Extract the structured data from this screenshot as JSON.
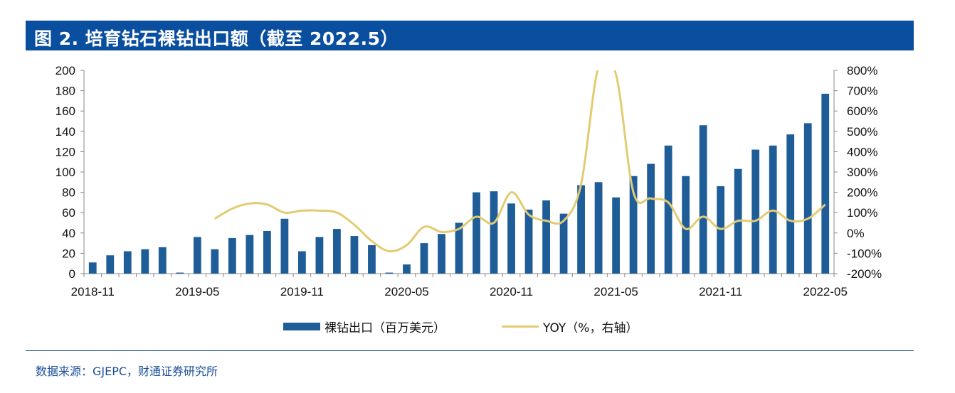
{
  "title": "图 2. 培育钻石裸钻出口额（截至 2022.5）",
  "source": "数据来源：GJEPC，财通证券研究所",
  "colors": {
    "title_bg": "#0a4ea0",
    "bar": "#1f5d99",
    "line": "#e3cb73",
    "axis": "#888888"
  },
  "chart_data": {
    "type": "bar",
    "categories": [
      "2018-11",
      "2018-12",
      "2019-01",
      "2019-02",
      "2019-03",
      "2019-04",
      "2019-05",
      "2019-06",
      "2019-07",
      "2019-08",
      "2019-09",
      "2019-10",
      "2019-11",
      "2019-12",
      "2020-01",
      "2020-02",
      "2020-03",
      "2020-04",
      "2020-05",
      "2020-06",
      "2020-07",
      "2020-08",
      "2020-09",
      "2020-10",
      "2020-11",
      "2020-12",
      "2021-01",
      "2021-02",
      "2021-03",
      "2021-04",
      "2021-05",
      "2021-06",
      "2021-07",
      "2021-08",
      "2021-09",
      "2021-10",
      "2021-11",
      "2021-12",
      "2022-01",
      "2022-02",
      "2022-03",
      "2022-04",
      "2022-05"
    ],
    "x_tick_labels": [
      "2018-11",
      "2019-05",
      "2019-11",
      "2020-05",
      "2020-11",
      "2021-05",
      "2021-11",
      "2022-05"
    ],
    "y_left": {
      "min": 0,
      "max": 200,
      "step": 20,
      "ticks": [
        "0",
        "20",
        "40",
        "60",
        "80",
        "100",
        "120",
        "140",
        "160",
        "180",
        "200"
      ]
    },
    "y_right": {
      "min": -200,
      "max": 800,
      "step": 100,
      "ticks": [
        "-200%",
        "-100%",
        "0%",
        "100%",
        "200%",
        "300%",
        "400%",
        "500%",
        "600%",
        "700%",
        "800%"
      ]
    },
    "series": [
      {
        "name": "裸钻出口（百万美元）",
        "type": "bar",
        "axis": "left",
        "values": [
          11,
          18,
          22,
          24,
          26,
          1,
          36,
          24,
          35,
          38,
          42,
          54,
          22,
          36,
          44,
          37,
          28,
          1,
          9,
          30,
          39,
          50,
          80,
          81,
          69,
          63,
          72,
          59,
          87,
          90,
          75,
          96,
          108,
          126,
          96,
          146,
          86,
          103,
          122,
          126,
          137,
          148,
          177
        ]
      },
      {
        "name": "YOY（%，右轴）",
        "type": "line",
        "axis": "right",
        "values": [
          null,
          null,
          null,
          null,
          null,
          null,
          null,
          70,
          120,
          145,
          140,
          100,
          110,
          110,
          100,
          40,
          -40,
          -90,
          -60,
          30,
          5,
          20,
          80,
          50,
          200,
          90,
          60,
          60,
          240,
          820,
          780,
          200,
          170,
          150,
          20,
          80,
          20,
          60,
          60,
          110,
          60,
          70,
          140
        ]
      }
    ]
  }
}
